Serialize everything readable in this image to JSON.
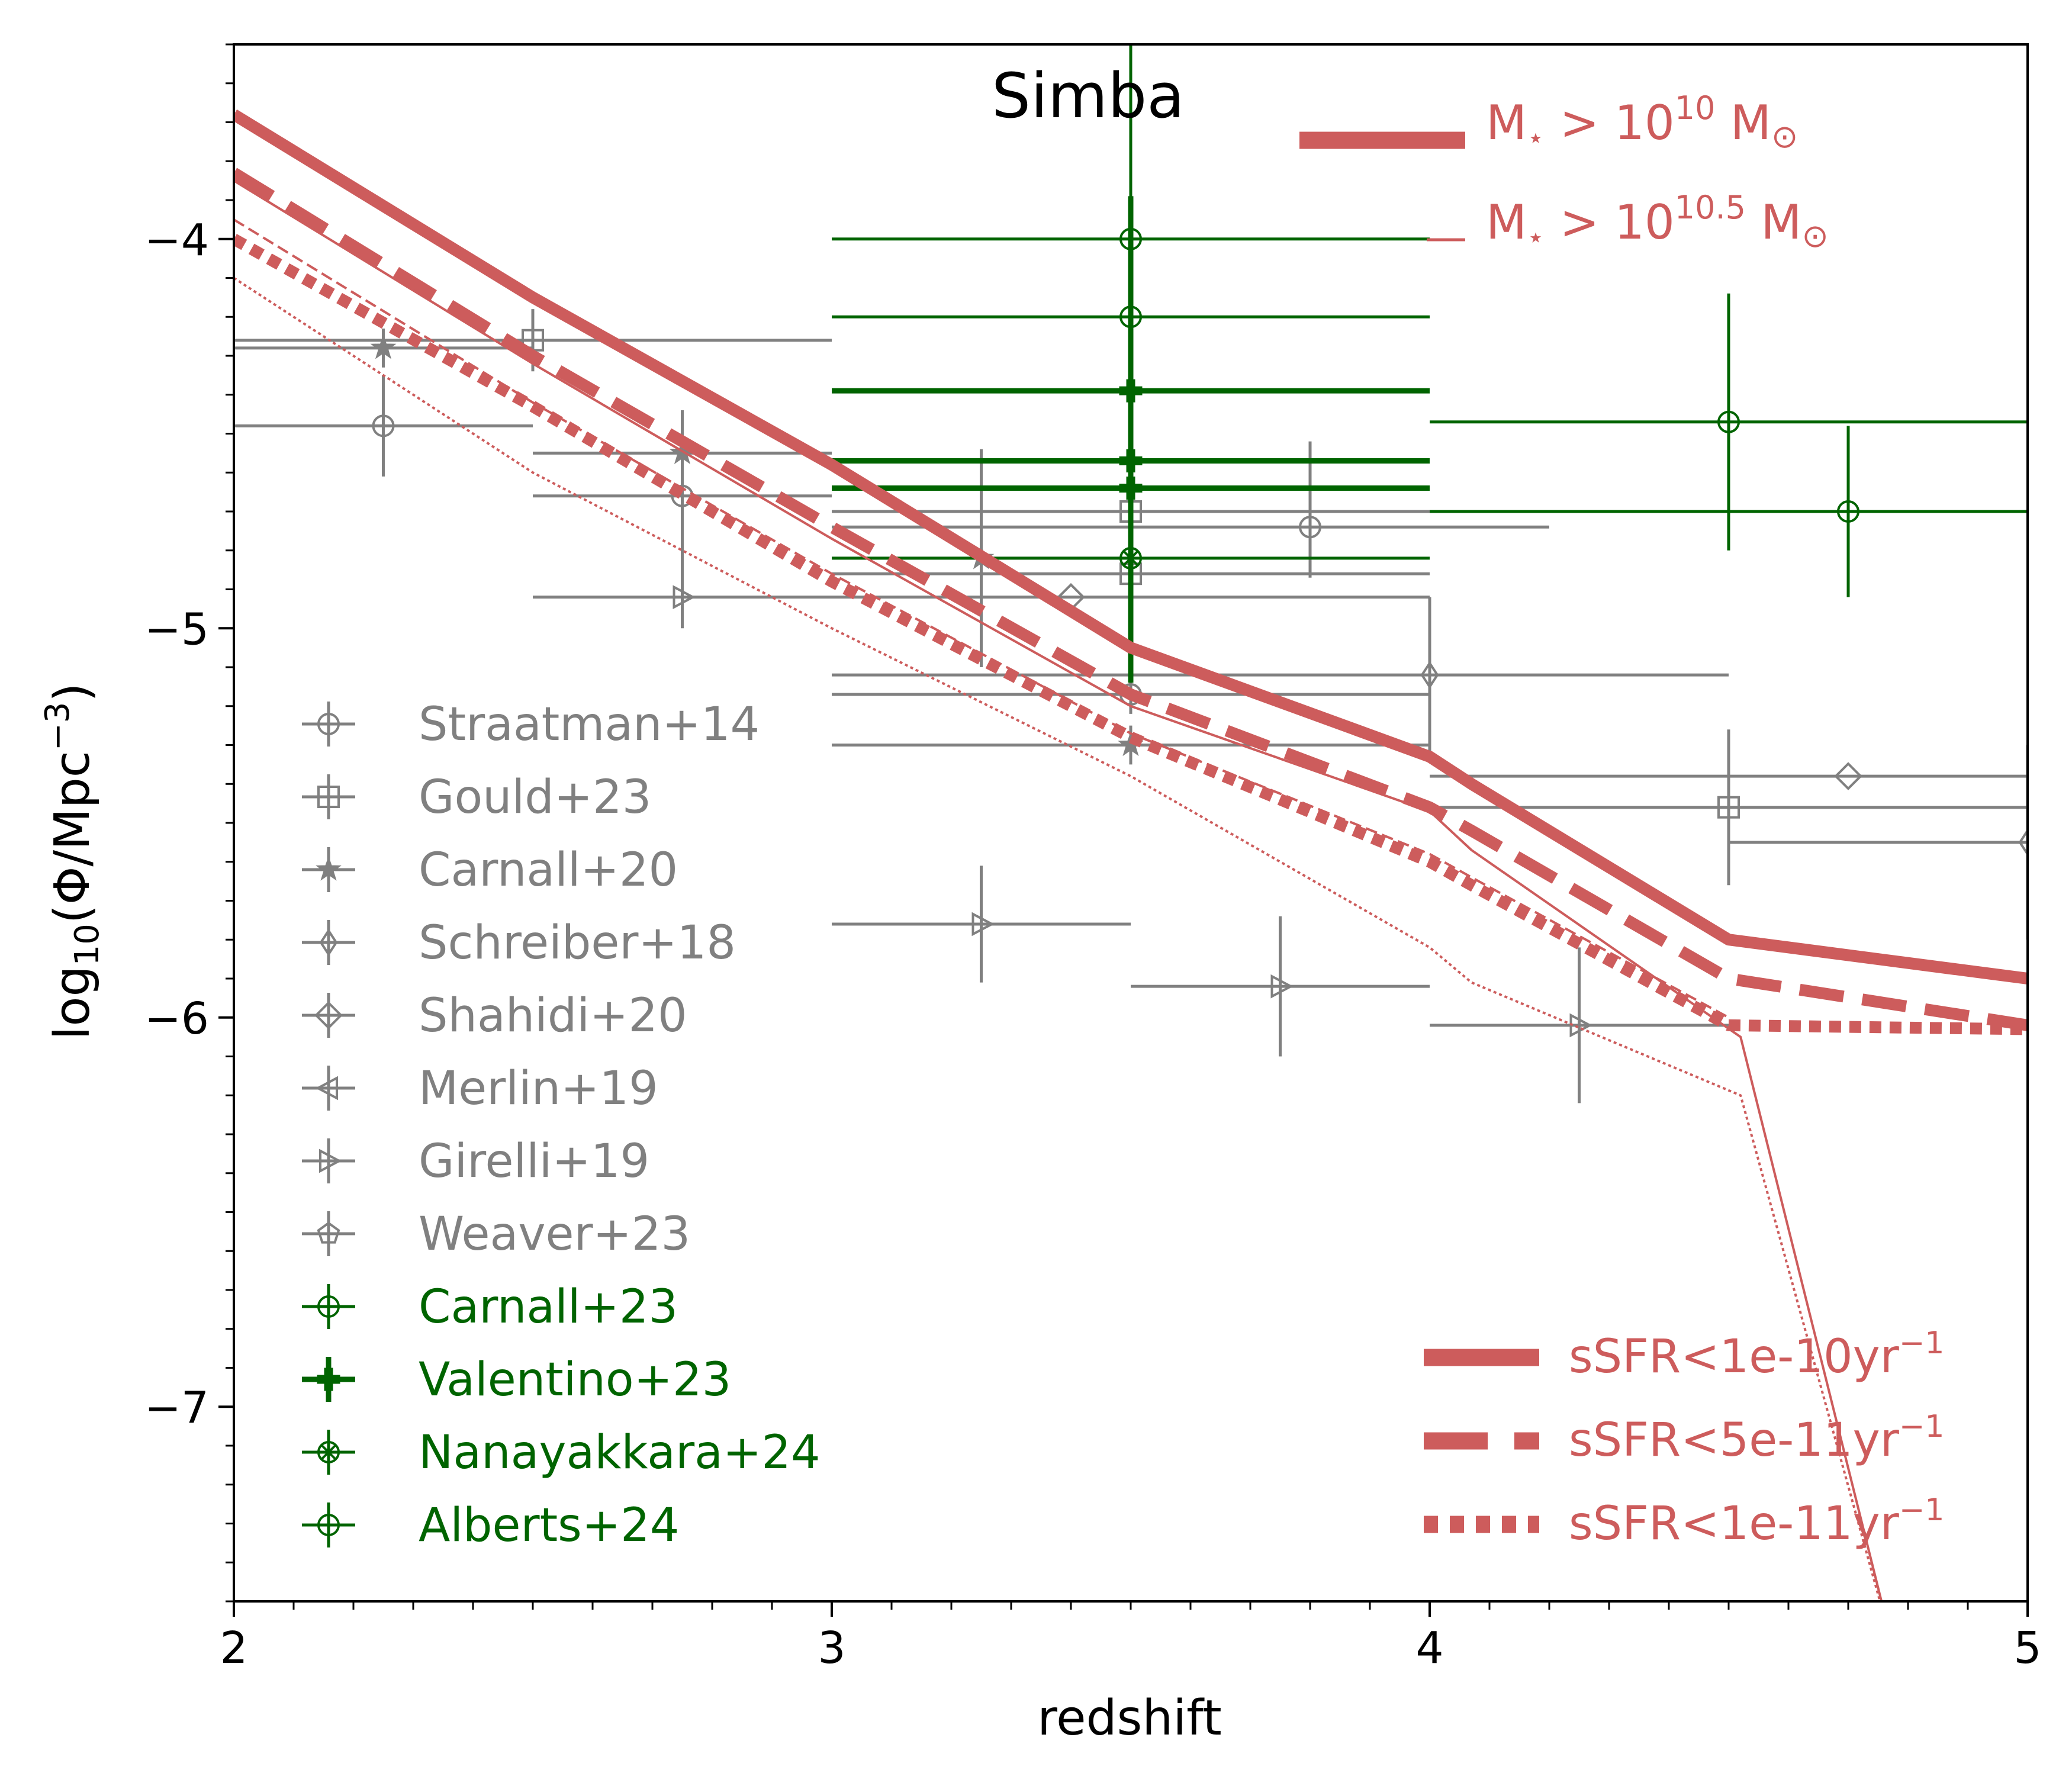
{
  "chart_data": {
    "type": "line",
    "title": "Simba",
    "xlabel": "redshift",
    "ylabel_parts": {
      "prefix": "log",
      "sub": "10",
      "mid": "(Φ/Mpc",
      "sup": "−3",
      "suffix": ")"
    },
    "xlim": [
      2,
      5
    ],
    "ylim": [
      -7.5,
      -3.5
    ],
    "xticks": [
      2,
      3,
      4,
      5
    ],
    "xtick_labels": [
      "2",
      "3",
      "4",
      "5"
    ],
    "yticks": [
      -4,
      -5,
      -6,
      -7
    ],
    "ytick_labels": [
      "−4",
      "−5",
      "−6",
      "−7"
    ],
    "grid": false,
    "colors": {
      "model": "#cd5c5c",
      "observed": "#808080",
      "jwst": "#006400",
      "axis": "#000000"
    },
    "mass_legend": [
      {
        "id": "m10",
        "label": "M",
        "star": "⋆",
        "rel": " > 10",
        "exp": "10",
        "unit": " M",
        "sun": "⊙"
      },
      {
        "id": "m105",
        "label": "M",
        "star": "⋆",
        "rel": " > 10",
        "exp": "10.5",
        "unit": " M",
        "sun": "⊙"
      }
    ],
    "ssfr_legend": [
      {
        "id": "s1",
        "label": "sSFR<1e-10yr",
        "sup": "−1",
        "style": "solid"
      },
      {
        "id": "s2",
        "label": "sSFR<5e-11yr",
        "sup": "−1",
        "style": "dashed"
      },
      {
        "id": "s3",
        "label": "sSFR<1e-11yr",
        "sup": "−1",
        "style": "dotted"
      }
    ],
    "model_lines": [
      {
        "mass": "m10",
        "ssfr": "solid",
        "x": [
          2.0,
          2.5,
          3.0,
          3.5,
          4.0,
          4.07,
          4.5,
          5.0
        ],
        "y": [
          -3.68,
          -4.15,
          -4.58,
          -5.05,
          -5.33,
          -5.4,
          -5.8,
          -5.9
        ]
      },
      {
        "mass": "m10",
        "ssfr": "dashed",
        "x": [
          2.0,
          2.5,
          3.0,
          3.5,
          4.0,
          4.07,
          4.5,
          5.0
        ],
        "y": [
          -3.83,
          -4.3,
          -4.74,
          -5.17,
          -5.46,
          -5.52,
          -5.9,
          -6.02
        ]
      },
      {
        "mass": "m10",
        "ssfr": "dotted",
        "x": [
          2.0,
          2.5,
          3.0,
          3.5,
          4.0,
          4.07,
          4.5,
          5.0
        ],
        "y": [
          -4.0,
          -4.43,
          -4.88,
          -5.28,
          -5.6,
          -5.66,
          -6.02,
          -6.03
        ]
      },
      {
        "mass": "m105",
        "ssfr": "solid",
        "x": [
          2.0,
          2.5,
          3.0,
          3.5,
          4.0,
          4.07,
          4.52,
          4.78
        ],
        "y": [
          -3.85,
          -4.32,
          -4.77,
          -5.2,
          -5.47,
          -5.57,
          -6.05,
          -7.65
        ]
      },
      {
        "mass": "m105",
        "ssfr": "dashed",
        "x": [
          2.0,
          2.5,
          3.0,
          3.5,
          4.0,
          4.07,
          4.5
        ],
        "y": [
          -3.95,
          -4.42,
          -4.86,
          -5.27,
          -5.58,
          -5.64,
          -6.0
        ]
      },
      {
        "mass": "m105",
        "ssfr": "dotted",
        "x": [
          2.0,
          2.5,
          3.0,
          3.5,
          4.0,
          4.07,
          4.52,
          4.78
        ],
        "y": [
          -4.1,
          -4.6,
          -5.0,
          -5.38,
          -5.82,
          -5.91,
          -6.2,
          -7.65
        ]
      }
    ],
    "obs_legend": [
      {
        "label": "Straatman+14",
        "marker": "circle",
        "color": "observed",
        "bold": false
      },
      {
        "label": "Gould+23",
        "marker": "square",
        "color": "observed",
        "bold": false
      },
      {
        "label": "Carnall+20",
        "marker": "star",
        "color": "observed",
        "bold": false
      },
      {
        "label": "Schreiber+18",
        "marker": "thin_diamond",
        "color": "observed",
        "bold": false
      },
      {
        "label": "Shahidi+20",
        "marker": "diamond",
        "color": "observed",
        "bold": false
      },
      {
        "label": "Merlin+19",
        "marker": "tri_left",
        "color": "observed",
        "bold": false
      },
      {
        "label": "Girelli+19",
        "marker": "tri_right",
        "color": "observed",
        "bold": false
      },
      {
        "label": "Weaver+23",
        "marker": "pentagon",
        "color": "observed",
        "bold": false
      },
      {
        "label": "Carnall+23",
        "marker": "circle",
        "color": "jwst",
        "bold": false
      },
      {
        "label": "Valentino+23",
        "marker": "plus_filled",
        "color": "jwst",
        "bold": true
      },
      {
        "label": "Nanayakkara+24",
        "marker": "x_circle",
        "color": "jwst",
        "bold": false
      },
      {
        "label": "Alberts+24",
        "marker": "circle",
        "color": "jwst",
        "bold": false
      }
    ],
    "obs_points": [
      {
        "x": 2.25,
        "y": -4.48,
        "xerr": [
          0.25,
          0.25
        ],
        "yerr": [
          0.13,
          0.13
        ],
        "marker": "circle",
        "color": "observed"
      },
      {
        "x": 2.25,
        "y": -4.28,
        "xerr": [
          0.25,
          0.25
        ],
        "yerr": [
          0.05,
          0.05
        ],
        "marker": "star",
        "color": "observed"
      },
      {
        "x": 2.5,
        "y": -4.26,
        "xerr": [
          0.5,
          0.5
        ],
        "yerr": [
          0.08,
          0.08
        ],
        "marker": "square",
        "color": "observed"
      },
      {
        "x": 2.75,
        "y": -4.55,
        "xerr": [
          0.25,
          0.25
        ],
        "yerr": [
          0.05,
          0.05
        ],
        "marker": "star",
        "color": "observed"
      },
      {
        "x": 2.75,
        "y": -4.66,
        "xerr": [
          0.25,
          0.25
        ],
        "yerr": [
          0.22,
          0.22
        ],
        "marker": "circle",
        "color": "observed"
      },
      {
        "x": 2.75,
        "y": -4.92,
        "xerr": [
          0.25,
          0.25
        ],
        "yerr": [
          0.08,
          0.08
        ],
        "marker": "tri_right",
        "color": "observed"
      },
      {
        "x": 3.25,
        "y": -4.82,
        "xerr": [
          0.25,
          0.25
        ],
        "yerr": [
          0.28,
          0.28
        ],
        "marker": "star",
        "color": "observed"
      },
      {
        "x": 3.25,
        "y": -5.76,
        "xerr": [
          0.25,
          0.25
        ],
        "yerr": [
          0.15,
          0.15
        ],
        "marker": "tri_right",
        "color": "observed"
      },
      {
        "x": 3.4,
        "y": -4.92,
        "xerr": [
          0.4,
          0.6
        ],
        "yerr": [
          0,
          0
        ],
        "marker": "diamond",
        "color": "observed"
      },
      {
        "x": 3.5,
        "y": -4.7,
        "xerr": [
          0.5,
          0.5
        ],
        "yerr": [
          0.05,
          0.05
        ],
        "marker": "square",
        "color": "observed"
      },
      {
        "x": 3.5,
        "y": -4.86,
        "xerr": [
          0.5,
          0.5
        ],
        "yerr": [
          0.05,
          0.05
        ],
        "marker": "square",
        "color": "observed"
      },
      {
        "x": 3.5,
        "y": -5.17,
        "xerr": [
          0.5,
          0.5
        ],
        "yerr": [
          0.05,
          0.05
        ],
        "marker": "circle",
        "color": "observed"
      },
      {
        "x": 3.5,
        "y": -5.3,
        "xerr": [
          0.5,
          0.5
        ],
        "yerr": [
          0.05,
          0.05
        ],
        "marker": "star",
        "color": "observed"
      },
      {
        "x": 3.8,
        "y": -4.74,
        "xerr": [
          0.8,
          0.4
        ],
        "yerr": [
          0.13,
          0.22
        ],
        "marker": "circle",
        "color": "observed"
      },
      {
        "x": 3.75,
        "y": -5.92,
        "xerr": [
          0.25,
          0.25
        ],
        "yerr": [
          0.18,
          0.18
        ],
        "marker": "tri_right",
        "color": "observed"
      },
      {
        "x": 4.0,
        "y": -5.12,
        "xerr": [
          1.0,
          0.5
        ],
        "yerr": [
          0.2,
          0.2
        ],
        "marker": "thin_diamond",
        "color": "observed"
      },
      {
        "x": 4.25,
        "y": -6.02,
        "xerr": [
          0.25,
          0.25
        ],
        "yerr": [
          0.2,
          0.2
        ],
        "marker": "tri_right",
        "color": "observed"
      },
      {
        "x": 4.5,
        "y": -5.46,
        "xerr": [
          0.5,
          0.5
        ],
        "yerr": [
          0.2,
          0.2
        ],
        "marker": "square",
        "color": "observed"
      },
      {
        "x": 4.7,
        "y": -5.38,
        "xerr": [
          0.7,
          0.3
        ],
        "yerr": [
          0,
          0
        ],
        "marker": "diamond",
        "color": "observed"
      },
      {
        "x": 5.0,
        "y": -5.55,
        "xerr": [
          0.5,
          0.0
        ],
        "yerr": [
          0.25,
          0.25
        ],
        "marker": "thin_diamond",
        "color": "observed"
      },
      {
        "x": 3.5,
        "y": -4.0,
        "xerr": [
          0.5,
          0.5
        ],
        "yerr": [
          0.5,
          0.5
        ],
        "marker": "circle",
        "color": "jwst"
      },
      {
        "x": 3.5,
        "y": -4.2,
        "xerr": [
          0.5,
          0.5
        ],
        "yerr": [
          0.5,
          0.5
        ],
        "marker": "circle",
        "color": "jwst"
      },
      {
        "x": 3.5,
        "y": -4.39,
        "xerr": [
          0.5,
          0.5
        ],
        "yerr": [
          0.5,
          0.5
        ],
        "marker": "plus_filled",
        "color": "jwst"
      },
      {
        "x": 3.5,
        "y": -4.57,
        "xerr": [
          0.5,
          0.5
        ],
        "yerr": [
          0.5,
          0.5
        ],
        "marker": "plus_filled",
        "color": "jwst"
      },
      {
        "x": 3.5,
        "y": -4.64,
        "xerr": [
          0.5,
          0.5
        ],
        "yerr": [
          0.5,
          0.5
        ],
        "marker": "plus_filled",
        "color": "jwst"
      },
      {
        "x": 3.5,
        "y": -4.82,
        "xerr": [
          0.5,
          0.5
        ],
        "yerr": [
          0.3,
          0.3
        ],
        "marker": "x_circle",
        "color": "jwst"
      },
      {
        "x": 4.5,
        "y": -4.47,
        "xerr": [
          0.5,
          0.5
        ],
        "yerr": [
          0.33,
          0.33
        ],
        "marker": "circle",
        "color": "jwst"
      },
      {
        "x": 4.7,
        "y": -4.7,
        "xerr": [
          0.7,
          0.3
        ],
        "yerr": [
          0.22,
          0.22
        ],
        "marker": "circle",
        "color": "jwst"
      }
    ]
  }
}
